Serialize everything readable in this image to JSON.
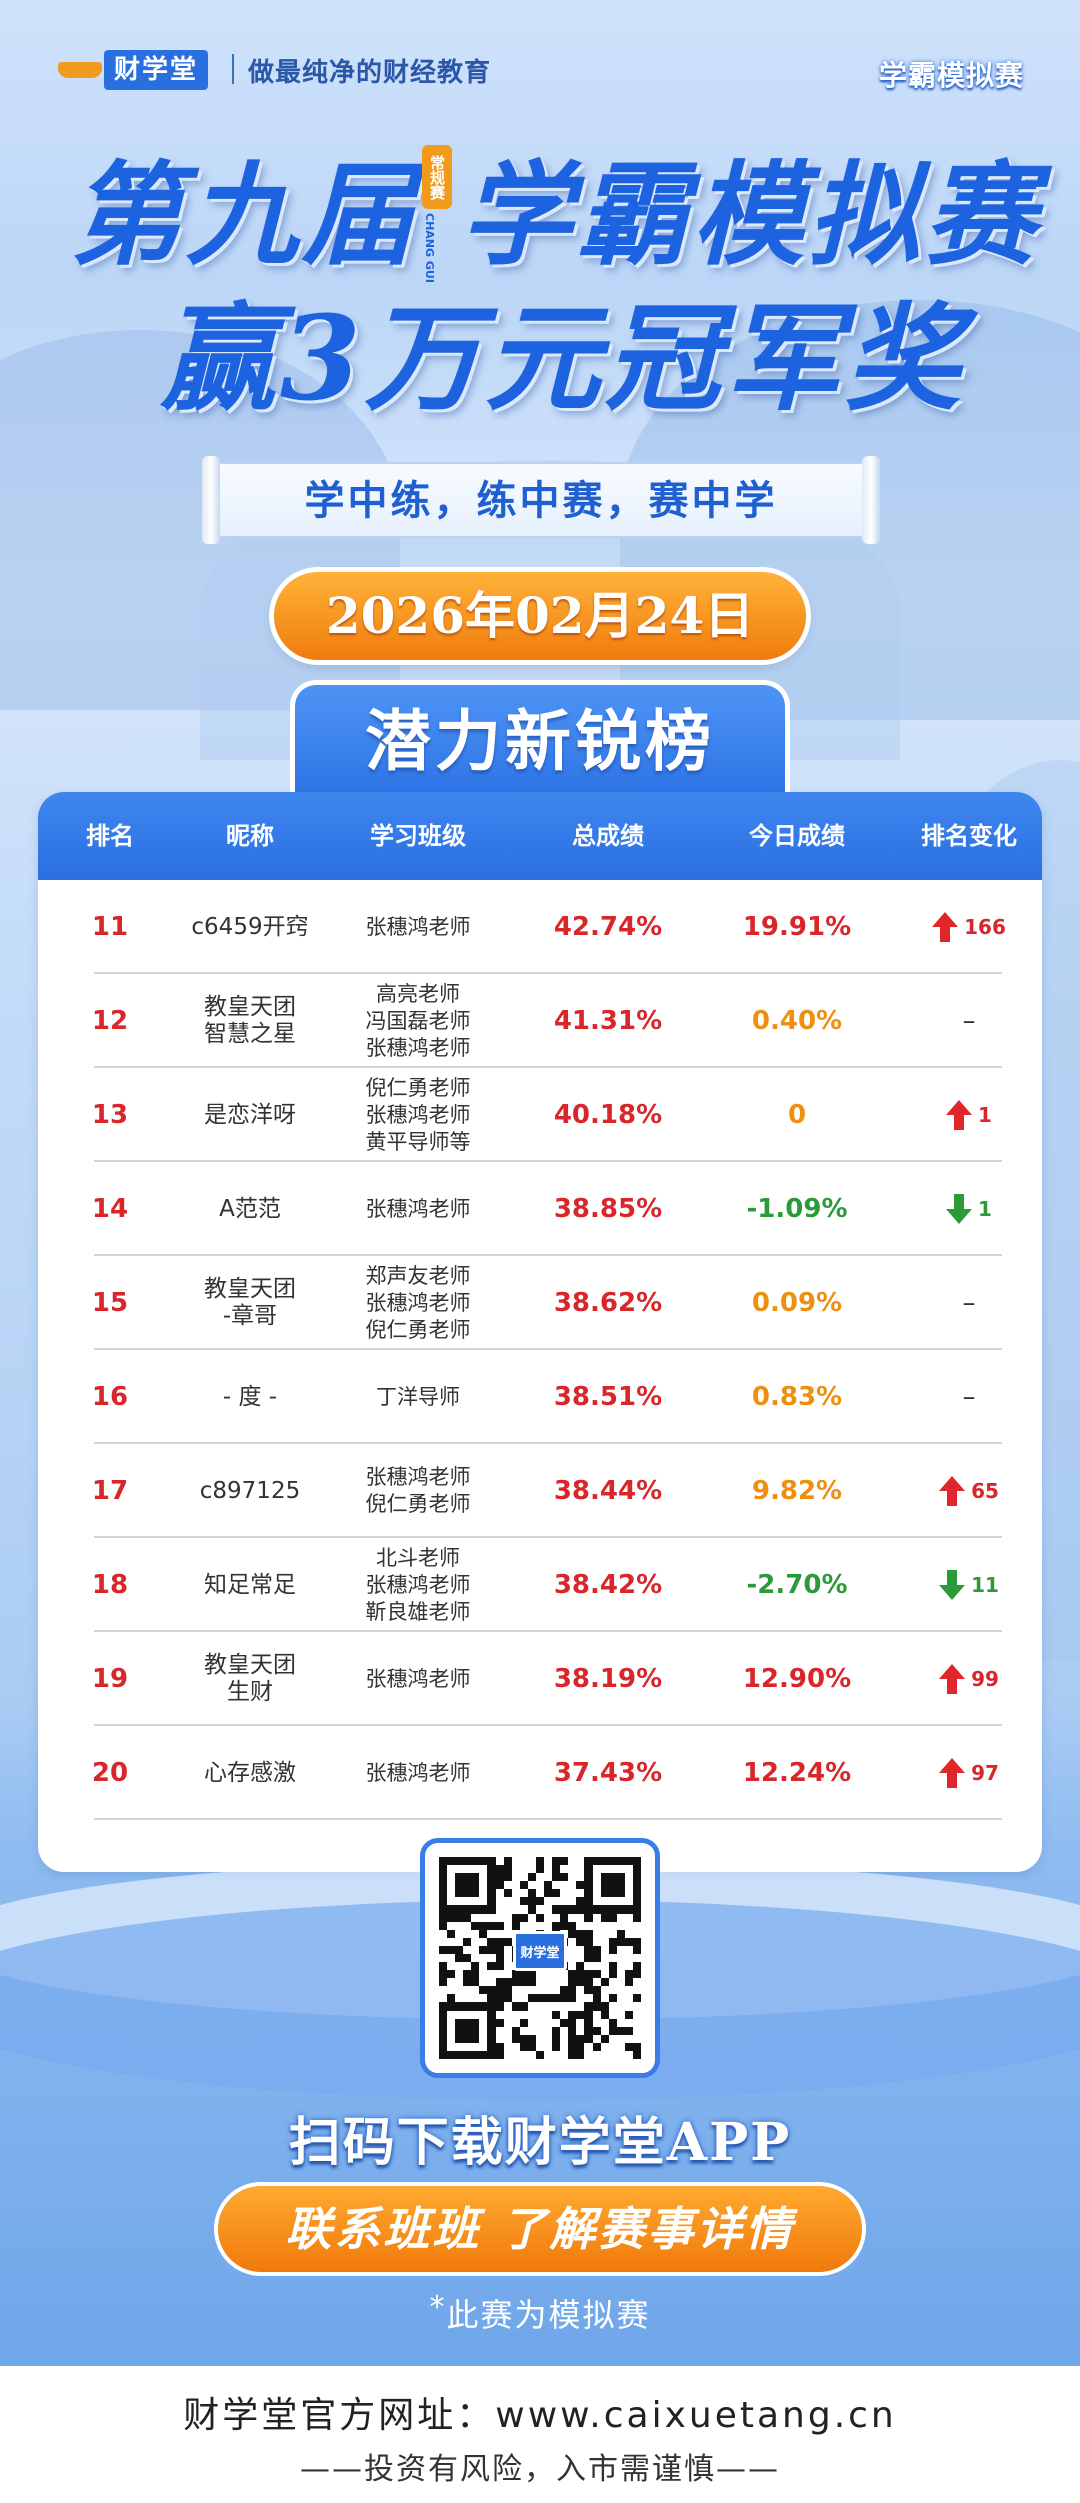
{
  "header": {
    "logo_text": "财学堂",
    "slogan": "做最纯净的财经教育",
    "brand_right": "学霸模拟赛"
  },
  "titles": {
    "line1_left": "第九届",
    "seal_badge": "常规赛",
    "seal_sub": "CHANG GUI",
    "line1_right": "学霸模拟赛",
    "line2": "赢3万元冠军奖"
  },
  "scroll_text": "学中练，练中赛，赛中学",
  "date": "2026年02月24日",
  "board_title": "潜力新锐榜",
  "table": {
    "headers": [
      "排名",
      "昵称",
      "学习班级",
      "总成绩",
      "今日成绩",
      "排名变化"
    ],
    "rows": [
      {
        "rank": "11",
        "nick": "c6459开窍",
        "cls": "张穗鸿老师",
        "total": "42.74%",
        "today": "19.91%",
        "today_color": "red",
        "change_dir": "up",
        "change": "166"
      },
      {
        "rank": "12",
        "nick": "教皇天团\n智慧之星",
        "cls": "高亮老师\n冯国磊老师\n张穗鸿老师",
        "total": "41.31%",
        "today": "0.40%",
        "today_color": "orange",
        "change_dir": "flat",
        "change": "–"
      },
      {
        "rank": "13",
        "nick": "是恋洋呀",
        "cls": "倪仁勇老师\n张穗鸿老师\n黄平导师等",
        "total": "40.18%",
        "today": "0",
        "today_color": "orange",
        "change_dir": "up",
        "change": "1"
      },
      {
        "rank": "14",
        "nick": "A范范",
        "cls": "张穗鸿老师",
        "total": "38.85%",
        "today": "-1.09%",
        "today_color": "green",
        "change_dir": "down",
        "change": "1"
      },
      {
        "rank": "15",
        "nick": "教皇天团\n-章哥",
        "cls": "郑声友老师\n张穗鸿老师\n倪仁勇老师",
        "total": "38.62%",
        "today": "0.09%",
        "today_color": "orange",
        "change_dir": "flat",
        "change": "–"
      },
      {
        "rank": "16",
        "nick": "- 度 -",
        "cls": "丁洋导师",
        "total": "38.51%",
        "today": "0.83%",
        "today_color": "orange",
        "change_dir": "flat",
        "change": "–"
      },
      {
        "rank": "17",
        "nick": "c897125",
        "cls": "张穗鸿老师\n倪仁勇老师",
        "total": "38.44%",
        "today": "9.82%",
        "today_color": "orange",
        "change_dir": "up",
        "change": "65"
      },
      {
        "rank": "18",
        "nick": "知足常足",
        "cls": "北斗老师\n张穗鸿老师\n靳良雄老师",
        "total": "38.42%",
        "today": "-2.70%",
        "today_color": "green",
        "change_dir": "down",
        "change": "11"
      },
      {
        "rank": "19",
        "nick": "教皇天团\n生财",
        "cls": "张穗鸿老师",
        "total": "38.19%",
        "today": "12.90%",
        "today_color": "red",
        "change_dir": "up",
        "change": "99"
      },
      {
        "rank": "20",
        "nick": "心存感激",
        "cls": "张穗鸿老师",
        "total": "37.43%",
        "today": "12.24%",
        "today_color": "red",
        "change_dir": "up",
        "change": "97"
      }
    ]
  },
  "qr_logo": "财学堂",
  "scan_text": "扫码下载财学堂APP",
  "contact_text": "联系班班  了解赛事详情",
  "note_star": "*",
  "note_text": "此赛为模拟赛",
  "footer": {
    "site": "财学堂官方网址：www.caixuetang.cn",
    "risk": "——投资有风险，入市需谨慎——"
  },
  "colors": {
    "title_blue": "#1d62de",
    "accent_orange": "#f07c0c",
    "rank_red": "#d8262a",
    "gain_orange": "#ef8f10",
    "loss_green": "#2b9b3a"
  }
}
